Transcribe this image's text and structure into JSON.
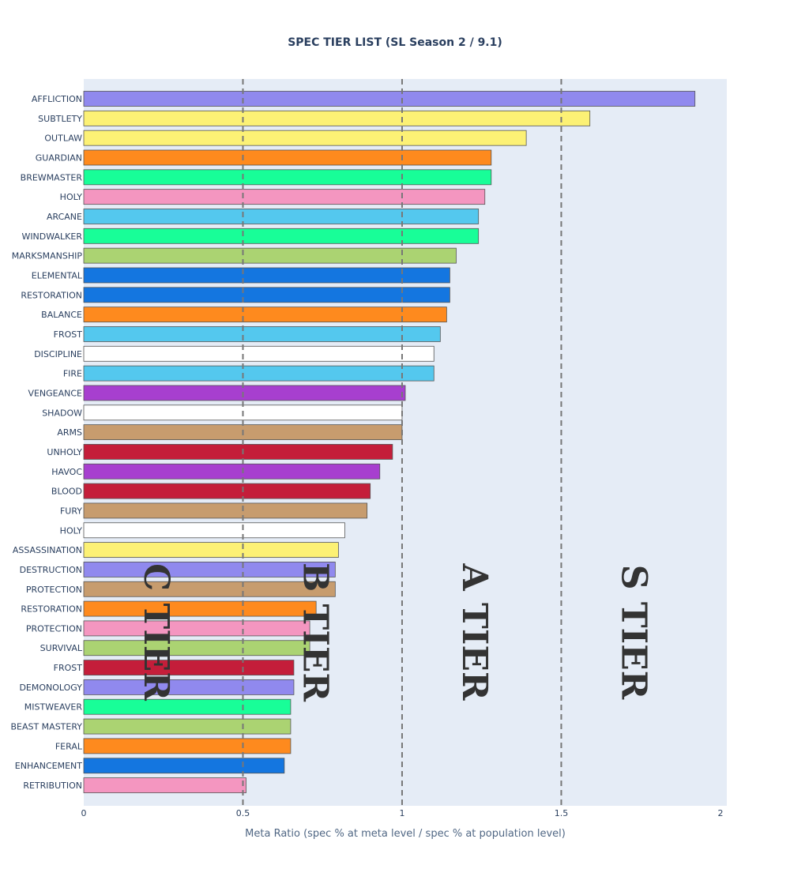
{
  "chart_data": {
    "type": "bar",
    "orientation": "horizontal",
    "title": "SPEC TIER LIST (SL Season 2 / 9.1)",
    "xlabel": "Meta Ratio (spec % at meta level / spec % at population level)",
    "ylabel": "",
    "xlim": [
      0,
      2.02
    ],
    "x_ticks": [
      0,
      0.5,
      1,
      1.5,
      2
    ],
    "x_tick_labels": [
      "0",
      "0.5",
      "1",
      "1.5",
      "2"
    ],
    "grid": false,
    "plot_background": "#e5ecf6",
    "thresholds": [
      0.5,
      1,
      1.5
    ],
    "tier_labels": [
      {
        "text": "C TIER",
        "x": 0.22
      },
      {
        "text": "B TIER",
        "x": 0.72
      },
      {
        "text": "A TIER",
        "x": 1.22
      },
      {
        "text": "S TIER",
        "x": 1.72
      }
    ],
    "categories": [
      "AFFLICTION",
      "SUBTLETY",
      "OUTLAW",
      "GUARDIAN",
      "BREWMASTER",
      "HOLY",
      "ARCANE",
      "WINDWALKER",
      "MARKSMANSHIP",
      "ELEMENTAL",
      "RESTORATION",
      "BALANCE",
      "FROST",
      "DISCIPLINE",
      "FIRE",
      "VENGEANCE",
      "SHADOW",
      "ARMS",
      "UNHOLY",
      "HAVOC",
      "BLOOD",
      "FURY",
      "HOLY",
      "ASSASSINATION",
      "DESTRUCTION",
      "PROTECTION",
      "RESTORATION",
      "PROTECTION",
      "SURVIVAL",
      "FROST",
      "DEMONOLOGY",
      "MISTWEAVER",
      "BEAST MASTERY",
      "FERAL",
      "ENHANCEMENT",
      "RETRIBUTION"
    ],
    "values": [
      1.92,
      1.59,
      1.39,
      1.28,
      1.28,
      1.26,
      1.24,
      1.24,
      1.17,
      1.15,
      1.15,
      1.14,
      1.12,
      1.1,
      1.1,
      1.01,
      1.0,
      1.0,
      0.97,
      0.93,
      0.9,
      0.89,
      0.82,
      0.8,
      0.79,
      0.79,
      0.73,
      0.71,
      0.71,
      0.66,
      0.66,
      0.65,
      0.65,
      0.65,
      0.63,
      0.51
    ],
    "colors": [
      "#9089ee",
      "#fcf175",
      "#fcf175",
      "#fe8a1e",
      "#18fe98",
      "#f496c0",
      "#54c8ee",
      "#18fe98",
      "#abd372",
      "#1476e0",
      "#1476e0",
      "#fe8a1e",
      "#54c8ee",
      "#ffffff",
      "#54c8ee",
      "#a73fcf",
      "#ffffff",
      "#c79c6e",
      "#c41e3a",
      "#a73fcf",
      "#c41e3a",
      "#c79c6e",
      "#ffffff",
      "#fcf175",
      "#9089ee",
      "#c79c6e",
      "#fe8a1e",
      "#f496c0",
      "#abd372",
      "#c41e3a",
      "#9089ee",
      "#18fe98",
      "#abd372",
      "#fe8a1e",
      "#1476e0",
      "#f496c0"
    ]
  }
}
